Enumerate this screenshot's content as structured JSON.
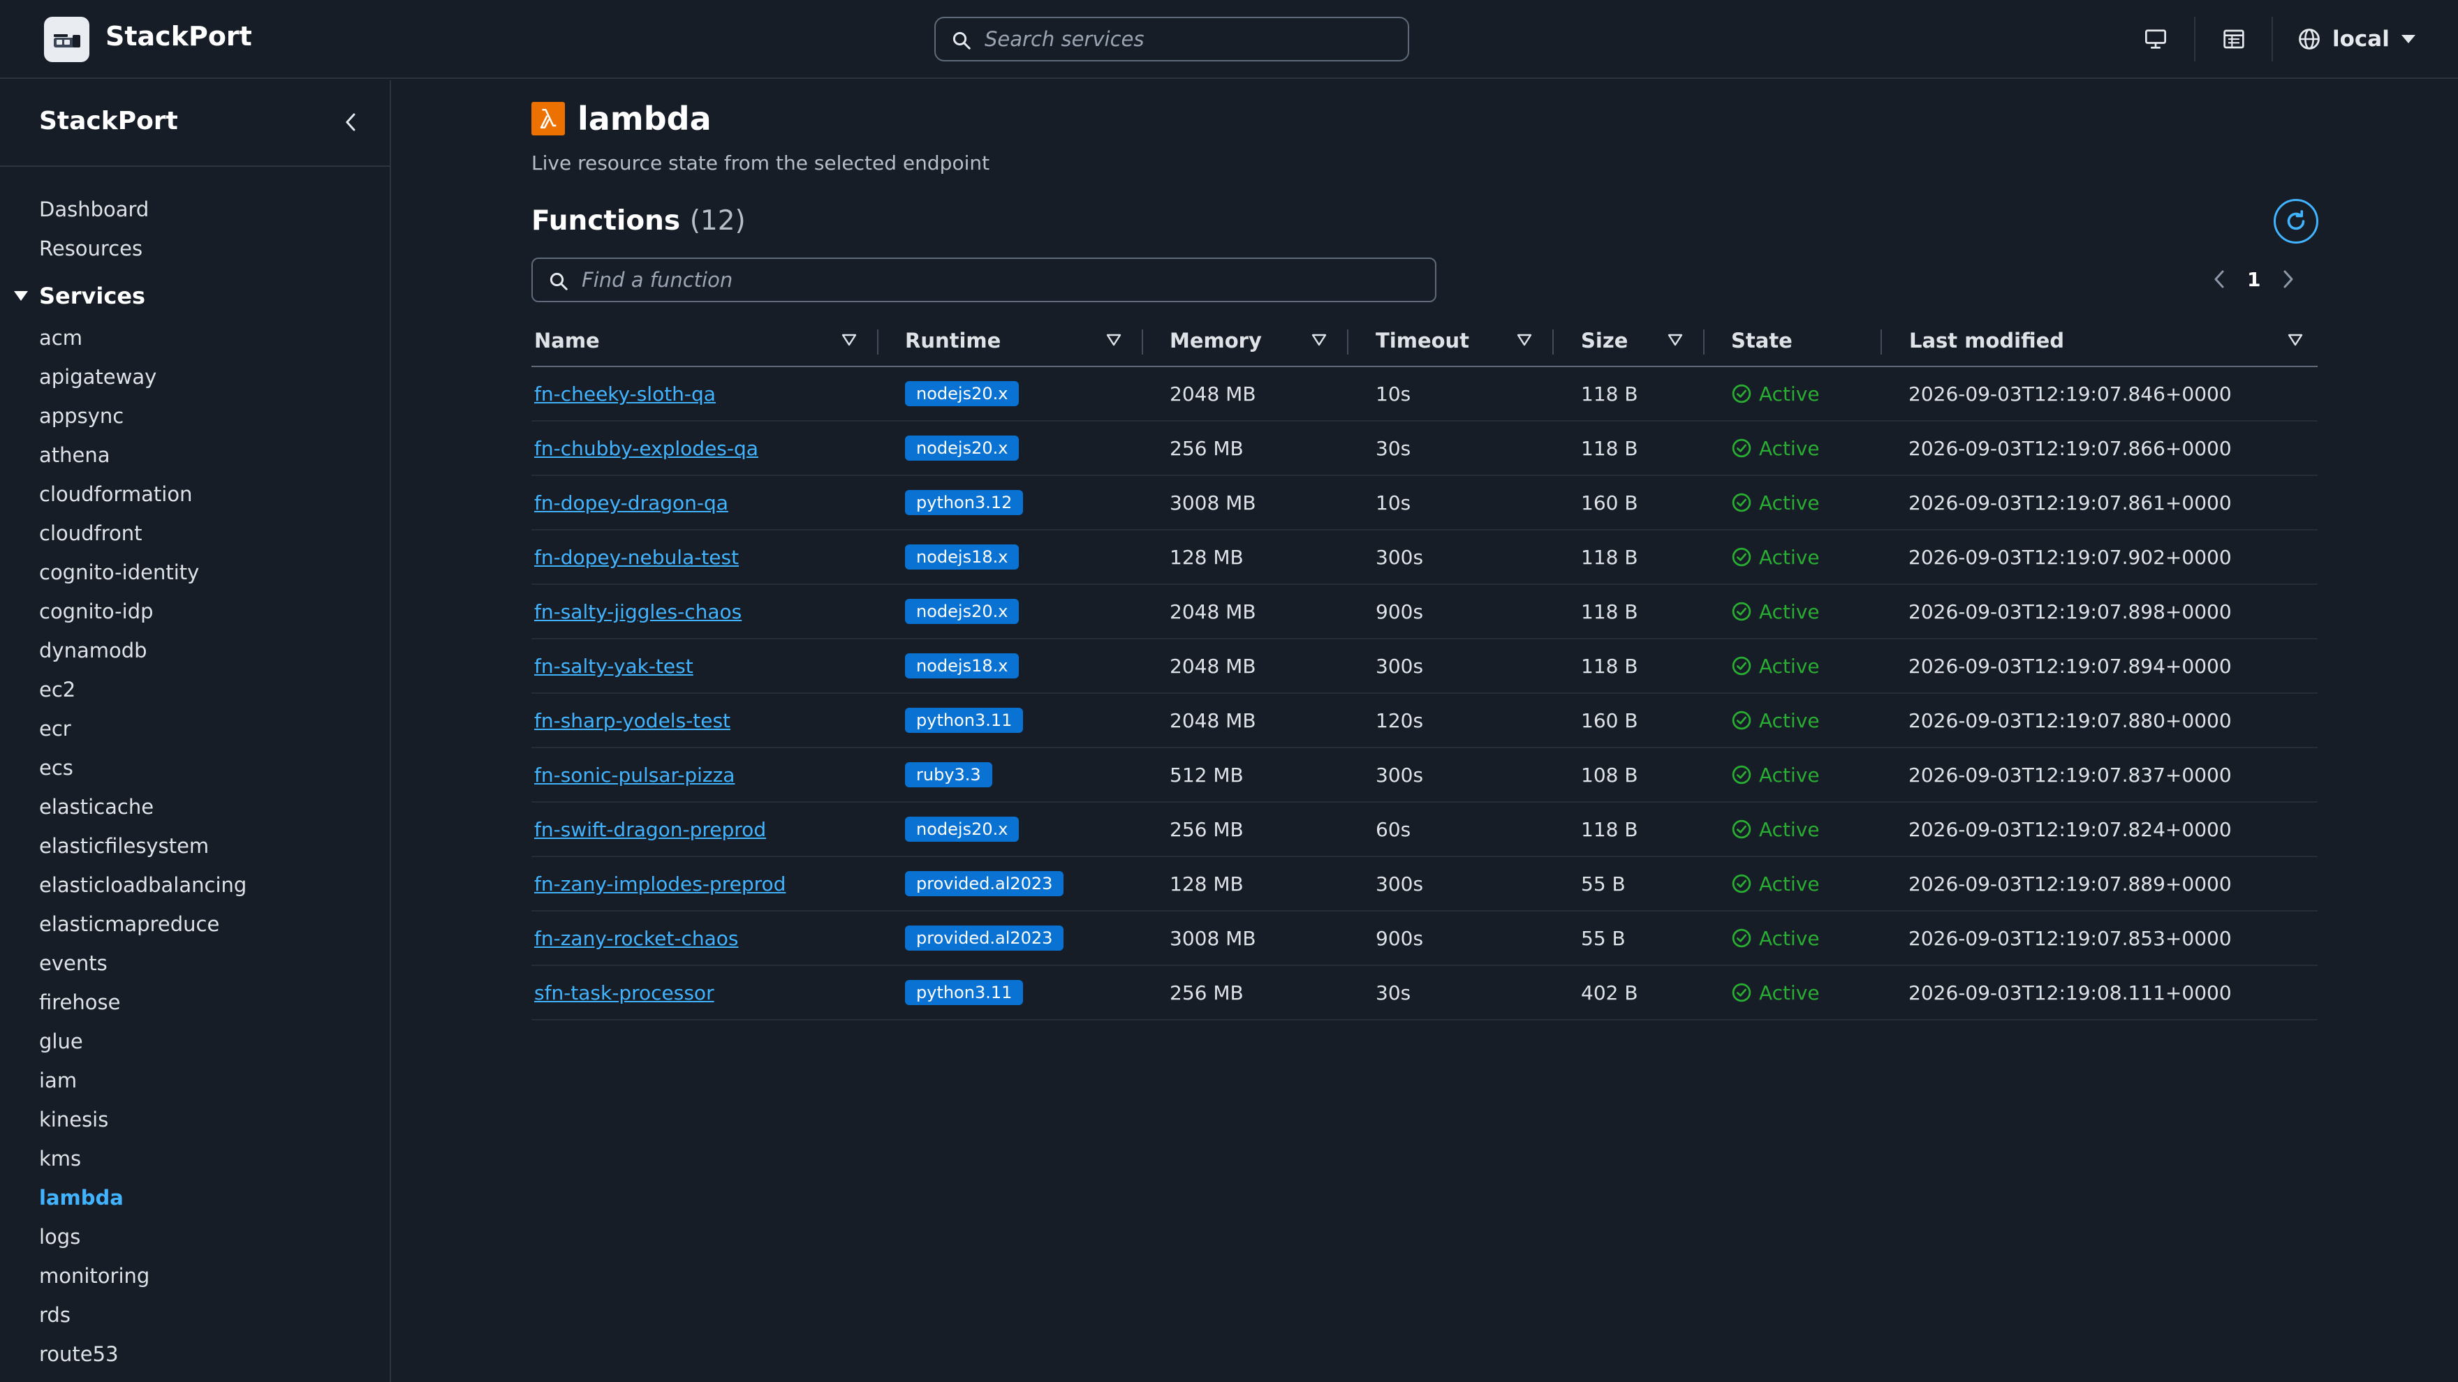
{
  "app": {
    "brand": "StackPort",
    "search_placeholder": "Search services",
    "region": "local"
  },
  "sidebar": {
    "title": "StackPort",
    "links": [
      "Dashboard",
      "Resources"
    ],
    "services_label": "Services",
    "services": [
      "acm",
      "apigateway",
      "appsync",
      "athena",
      "cloudformation",
      "cloudfront",
      "cognito-identity",
      "cognito-idp",
      "dynamodb",
      "ec2",
      "ecr",
      "ecs",
      "elasticache",
      "elasticfilesystem",
      "elasticloadbalancing",
      "elasticmapreduce",
      "events",
      "firehose",
      "glue",
      "iam",
      "kinesis",
      "kms",
      "lambda",
      "logs",
      "monitoring",
      "rds",
      "route53"
    ],
    "active_service": "lambda"
  },
  "main": {
    "service_name": "lambda",
    "subtitle": "Live resource state from the selected endpoint",
    "section_title": "Functions",
    "section_count": "(12)",
    "find_placeholder": "Find a function",
    "page_number": "1",
    "columns": [
      "Name",
      "Runtime",
      "Memory",
      "Timeout",
      "Size",
      "State",
      "Last modified"
    ],
    "rows": [
      {
        "name": "fn-cheeky-sloth-qa",
        "runtime": "nodejs20.x",
        "memory": "2048 MB",
        "timeout": "10s",
        "size": "118 B",
        "state": "Active",
        "modified": "2026-09-03T12:19:07.846+0000"
      },
      {
        "name": "fn-chubby-explodes-qa",
        "runtime": "nodejs20.x",
        "memory": "256 MB",
        "timeout": "30s",
        "size": "118 B",
        "state": "Active",
        "modified": "2026-09-03T12:19:07.866+0000"
      },
      {
        "name": "fn-dopey-dragon-qa",
        "runtime": "python3.12",
        "memory": "3008 MB",
        "timeout": "10s",
        "size": "160 B",
        "state": "Active",
        "modified": "2026-09-03T12:19:07.861+0000"
      },
      {
        "name": "fn-dopey-nebula-test",
        "runtime": "nodejs18.x",
        "memory": "128 MB",
        "timeout": "300s",
        "size": "118 B",
        "state": "Active",
        "modified": "2026-09-03T12:19:07.902+0000"
      },
      {
        "name": "fn-salty-jiggles-chaos",
        "runtime": "nodejs20.x",
        "memory": "2048 MB",
        "timeout": "900s",
        "size": "118 B",
        "state": "Active",
        "modified": "2026-09-03T12:19:07.898+0000"
      },
      {
        "name": "fn-salty-yak-test",
        "runtime": "nodejs18.x",
        "memory": "2048 MB",
        "timeout": "300s",
        "size": "118 B",
        "state": "Active",
        "modified": "2026-09-03T12:19:07.894+0000"
      },
      {
        "name": "fn-sharp-yodels-test",
        "runtime": "python3.11",
        "memory": "2048 MB",
        "timeout": "120s",
        "size": "160 B",
        "state": "Active",
        "modified": "2026-09-03T12:19:07.880+0000"
      },
      {
        "name": "fn-sonic-pulsar-pizza",
        "runtime": "ruby3.3",
        "memory": "512 MB",
        "timeout": "300s",
        "size": "108 B",
        "state": "Active",
        "modified": "2026-09-03T12:19:07.837+0000"
      },
      {
        "name": "fn-swift-dragon-preprod",
        "runtime": "nodejs20.x",
        "memory": "256 MB",
        "timeout": "60s",
        "size": "118 B",
        "state": "Active",
        "modified": "2026-09-03T12:19:07.824+0000"
      },
      {
        "name": "fn-zany-implodes-preprod",
        "runtime": "provided.al2023",
        "memory": "128 MB",
        "timeout": "300s",
        "size": "55 B",
        "state": "Active",
        "modified": "2026-09-03T12:19:07.889+0000"
      },
      {
        "name": "fn-zany-rocket-chaos",
        "runtime": "provided.al2023",
        "memory": "3008 MB",
        "timeout": "900s",
        "size": "55 B",
        "state": "Active",
        "modified": "2026-09-03T12:19:07.853+0000"
      },
      {
        "name": "sfn-task-processor",
        "runtime": "python3.11",
        "memory": "256 MB",
        "timeout": "30s",
        "size": "402 B",
        "state": "Active",
        "modified": "2026-09-03T12:19:08.111+0000"
      }
    ]
  },
  "colors": {
    "background": "#161d26",
    "accent": "#42b4ff",
    "runtime_badge": "#0972d3",
    "status_active": "#29ad32",
    "lambda_brand": "#ed7100"
  },
  "icons": {
    "logo": "stackport-logo-icon",
    "search": "search-icon",
    "monitor": "monitor-icon",
    "calendar": "calendar-icon",
    "globe": "globe-icon",
    "dropdown": "caret-down-icon",
    "collapse": "chevron-left-icon",
    "refresh": "refresh-icon",
    "prev": "chevron-left-icon",
    "next": "chevron-right-icon",
    "sort": "sort-caret-icon",
    "status": "check-circle-icon",
    "lambda": "lambda-icon"
  }
}
